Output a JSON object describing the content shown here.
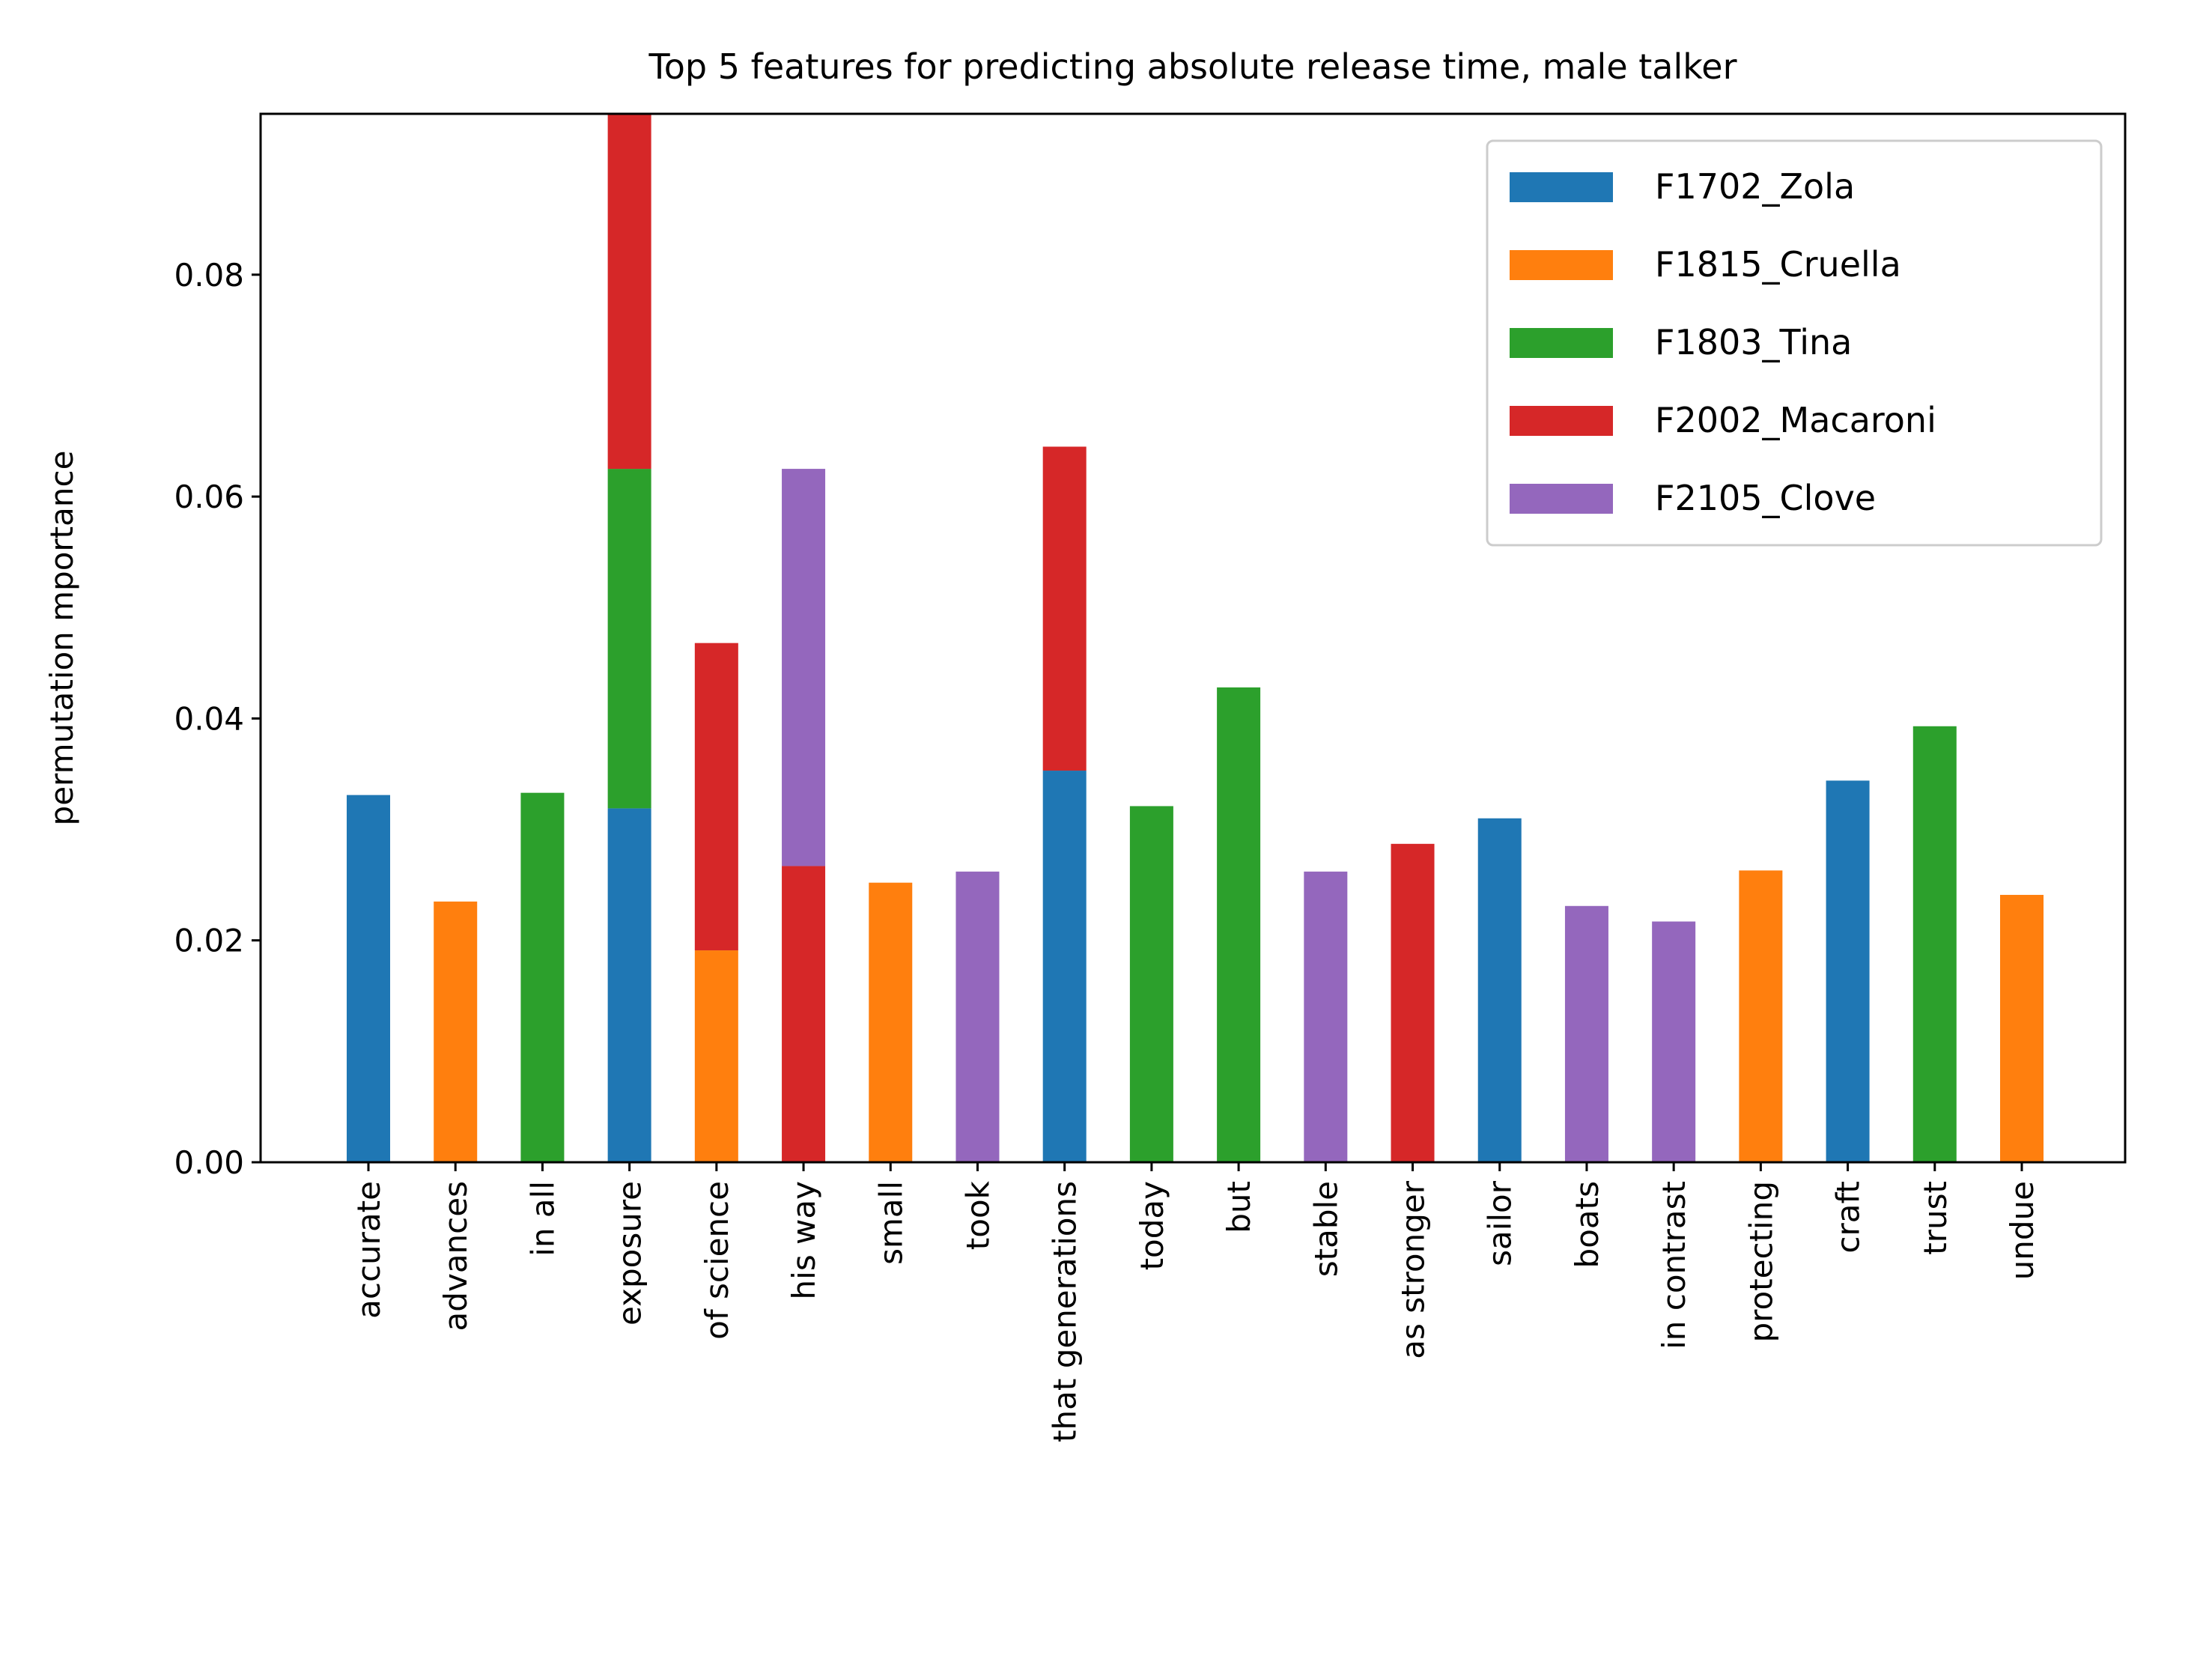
{
  "chart_data": {
    "type": "bar",
    "stacked": true,
    "title": "Top 5 features for predicting absolute release time, male talker",
    "xlabel": "",
    "ylabel": "permutation mportance",
    "ylim": [
      0,
      0.0945
    ],
    "yticks": [
      0.0,
      0.02,
      0.04,
      0.06,
      0.08
    ],
    "ytick_labels": [
      "0.00",
      "0.02",
      "0.04",
      "0.06",
      "0.08"
    ],
    "grid": false,
    "legend_position": "top-right",
    "categories": [
      "accurate",
      "advances",
      "in all",
      "exposure",
      "of science",
      "his way",
      "small",
      "took",
      "that generations",
      "today",
      "but",
      "stable",
      "as stronger",
      "sailor",
      "boats",
      "in contrast",
      "protecting",
      "craft",
      "trust",
      "undue"
    ],
    "series": [
      {
        "name": "F1702_Zola",
        "color": "#1f77b4",
        "values": [
          0.0331,
          0,
          0,
          0.0319,
          0,
          0,
          0,
          0,
          0.0353,
          0,
          0,
          0,
          0,
          0.031,
          0,
          0,
          0,
          0.0344,
          0,
          0
        ]
      },
      {
        "name": "F1815_Cruella",
        "color": "#ff7f0e",
        "values": [
          0,
          0.0235,
          0,
          0,
          0.0191,
          0,
          0.0252,
          0,
          0,
          0,
          0,
          0,
          0,
          0,
          0,
          0,
          0.0263,
          0,
          0,
          0.0241
        ]
      },
      {
        "name": "F1803_Tina",
        "color": "#2ca02c",
        "values": [
          0,
          0,
          0.0333,
          0.0306,
          0,
          0,
          0,
          0,
          0,
          0.0321,
          0.0428,
          0,
          0,
          0,
          0,
          0,
          0,
          0,
          0.0393,
          0
        ]
      },
      {
        "name": "F2002_Macaroni",
        "color": "#d62728",
        "values": [
          0,
          0,
          0,
          0.032,
          0.0277,
          0.0267,
          0,
          0,
          0.0292,
          0,
          0,
          0,
          0.0287,
          0,
          0,
          0,
          0,
          0,
          0,
          0
        ]
      },
      {
        "name": "F2105_Clove",
        "color": "#9467bd",
        "values": [
          0,
          0,
          0,
          0,
          0,
          0.0358,
          0,
          0.0262,
          0,
          0,
          0,
          0.0262,
          0,
          0,
          0.0231,
          0.0217,
          0,
          0,
          0,
          0
        ]
      }
    ]
  }
}
